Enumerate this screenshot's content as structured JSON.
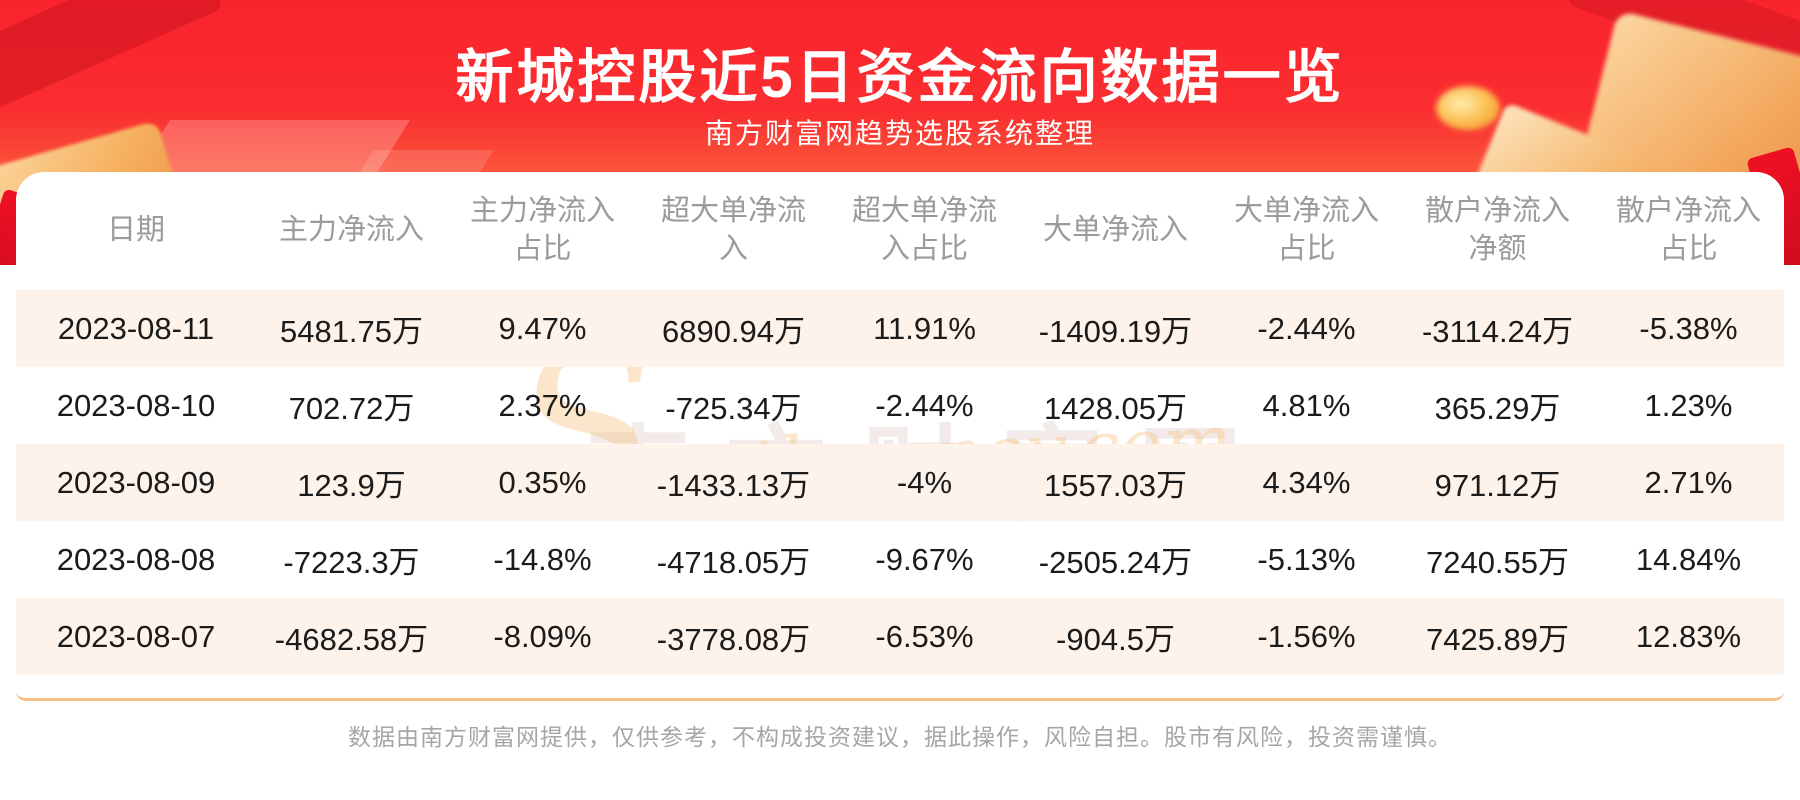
{
  "banner": {
    "title": "新城控股近5日资金流向数据一览",
    "subtitle": "南方财富网趋势选股系统整理"
  },
  "table": {
    "columns": [
      {
        "key": "date",
        "label": "日期"
      },
      {
        "key": "main_net_inflow",
        "label": "主力净流入"
      },
      {
        "key": "main_net_inflow_pct",
        "label": "主力净流入\n占比"
      },
      {
        "key": "xl_order_net_inflow",
        "label": "超大单净流\n入"
      },
      {
        "key": "xl_order_net_inflow_pct",
        "label": "超大单净流\n入占比"
      },
      {
        "key": "large_order_net_inflow",
        "label": "大单净流入"
      },
      {
        "key": "large_order_net_inflow_pct",
        "label": "大单净流入\n占比"
      },
      {
        "key": "retail_net_inflow",
        "label": "散户净流入\n净额"
      },
      {
        "key": "retail_net_inflow_pct",
        "label": "散户净流入\n占比"
      }
    ],
    "rows": [
      [
        "2023-08-11",
        "5481.75万",
        "9.47%",
        "6890.94万",
        "11.91%",
        "-1409.19万",
        "-2.44%",
        "-3114.24万",
        "-5.38%"
      ],
      [
        "2023-08-10",
        "702.72万",
        "2.37%",
        "-725.34万",
        "-2.44%",
        "1428.05万",
        "4.81%",
        "365.29万",
        "1.23%"
      ],
      [
        "2023-08-09",
        "123.9万",
        "0.35%",
        "-1433.13万",
        "-4%",
        "1557.03万",
        "4.34%",
        "971.12万",
        "2.71%"
      ],
      [
        "2023-08-08",
        "-7223.3万",
        "-14.8%",
        "-4718.05万",
        "-9.67%",
        "-2505.24万",
        "-5.13%",
        "7240.55万",
        "14.84%"
      ],
      [
        "2023-08-07",
        "-4682.58万",
        "-8.09%",
        "-3778.08万",
        "-6.53%",
        "-904.5万",
        "-1.56%",
        "7425.89万",
        "12.83%"
      ]
    ]
  },
  "watermark": {
    "cn": "南方财富网",
    "en_first": "S",
    "en_rest": "outhmoney.com"
  },
  "footer": {
    "disclaimer": "数据由南方财富网提供，仅供参考，不构成投资建议，据此操作，风险自担。股市有风险，投资需谨慎。"
  },
  "colors": {
    "banner_red": "#f9232c",
    "banner_orange": "#f8ab74",
    "row_highlight": "#fdf3eb",
    "card_border": "#f5bf85",
    "header_text": "#9b9b9b",
    "body_text": "#1b1b1b",
    "footer_text": "#a6a6a6"
  }
}
